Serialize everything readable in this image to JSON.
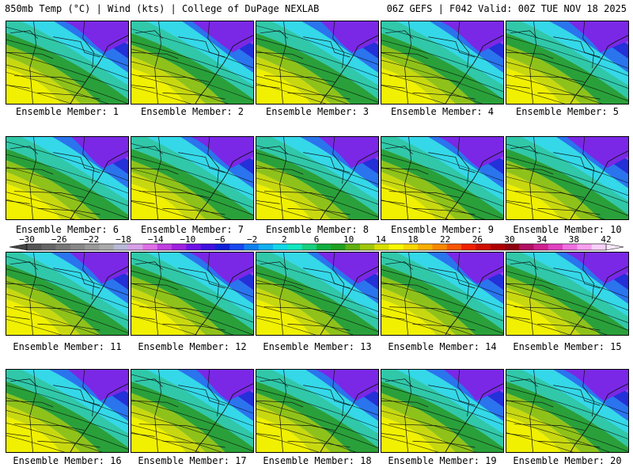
{
  "header": {
    "left": "850mb Temp (°C) | Wind (kts) | College of DuPage NEXLAB",
    "right": "06Z GEFS | F042 Valid: 00Z TUE NOV 18 2025"
  },
  "members": [
    "Ensemble Member: 1",
    "Ensemble Member: 2",
    "Ensemble Member: 3",
    "Ensemble Member: 4",
    "Ensemble Member: 5",
    "Ensemble Member: 6",
    "Ensemble Member: 7",
    "Ensemble Member: 8",
    "Ensemble Member: 9",
    "Ensemble Member: 10",
    "Ensemble Member: 11",
    "Ensemble Member: 12",
    "Ensemble Member: 13",
    "Ensemble Member: 14",
    "Ensemble Member: 15",
    "Ensemble Member: 16",
    "Ensemble Member: 17",
    "Ensemble Member: 18",
    "Ensemble Member: 19",
    "Ensemble Member: 20"
  ],
  "colorbar": {
    "labels": [
      "−30",
      "−26",
      "−22",
      "−18",
      "−14",
      "−10",
      "−6",
      "−2",
      "2",
      "6",
      "10",
      "14",
      "18",
      "22",
      "26",
      "30",
      "34",
      "38",
      "42"
    ],
    "colors": [
      "#555555",
      "#666666",
      "#777777",
      "#888888",
      "#999999",
      "#aaaaaa",
      "#b8b8d8",
      "#d8a0e8",
      "#e070e8",
      "#c040e0",
      "#a020e0",
      "#7010e8",
      "#4010e0",
      "#1020d8",
      "#1848f0",
      "#1080f0",
      "#10b0f0",
      "#10d8e8",
      "#10e8c0",
      "#18d080",
      "#10b040",
      "#20a020",
      "#60b010",
      "#a0c808",
      "#d8e000",
      "#f8f800",
      "#f8d800",
      "#f8b000",
      "#f88800",
      "#f85800",
      "#f02000",
      "#d01000",
      "#b00000",
      "#900010",
      "#b01060",
      "#d02090",
      "#e040c0",
      "#f070e0",
      "#f8a0f0",
      "#f8d0f8"
    ]
  },
  "map_colors": {
    "purple": "#7a28e6",
    "violet": "#9a3ee8",
    "blue": "#2430d8",
    "midblue": "#2a74ee",
    "cyan": "#34d8e8",
    "teal": "#30c8a8",
    "green": "#2aa03a",
    "lime": "#8ec21a",
    "yellowgreen": "#c8d810",
    "yellow": "#f0f000"
  }
}
